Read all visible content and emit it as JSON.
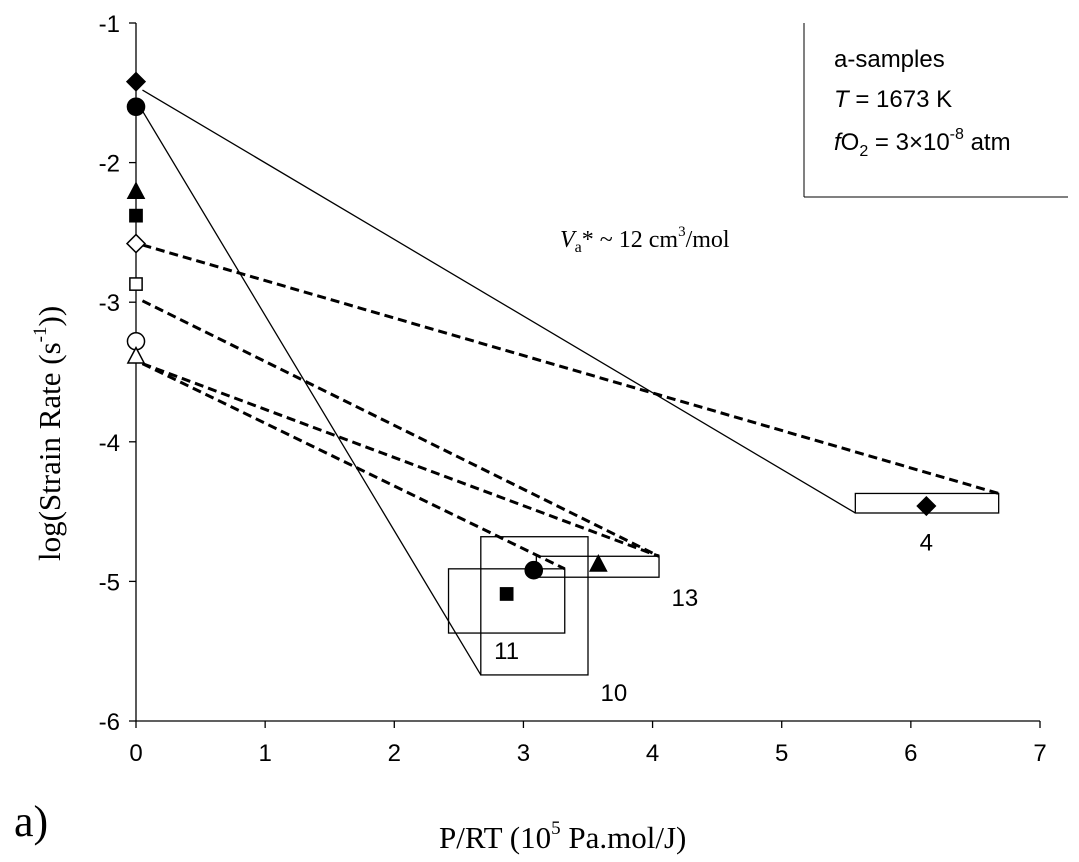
{
  "chart_data": {
    "type": "scatter",
    "panel_label": "a)",
    "xlabel_main": "P/RT (10",
    "xlabel_sup": "5",
    "xlabel_tail": " Pa.mol/J)",
    "ylabel_main": "log(Strain Rate (s",
    "ylabel_sup": "-1",
    "ylabel_tail": "))",
    "xlim": [
      0,
      7
    ],
    "ylim": [
      -6,
      -1
    ],
    "x_ticks": [
      0,
      1,
      2,
      3,
      4,
      5,
      6,
      7
    ],
    "y_ticks": [
      -1,
      -2,
      -3,
      -4,
      -5,
      -6
    ],
    "legend_box": {
      "line1": "a-samples",
      "line2_italic": "T",
      "line2_rest": " = 1673 K",
      "line3_italic": "f",
      "line3_a": "O",
      "line3_sub": "2",
      "line3_b": " = 3×10",
      "line3_sup": "-8",
      "line3_c": " atm"
    },
    "annotation": {
      "v_italic": "V",
      "v_sub": "a",
      "v_mid": "* ~ 12 cm",
      "v_sup": "3",
      "v_tail": "/mol"
    },
    "data_points": [
      {
        "marker": "diamond",
        "filled": true,
        "x": 6.12,
        "y": -4.46
      },
      {
        "marker": "circle",
        "filled": true,
        "x": 3.08,
        "y": -4.92
      },
      {
        "marker": "triangle",
        "filled": true,
        "x": 3.58,
        "y": -4.88
      },
      {
        "marker": "square",
        "filled": true,
        "x": 2.87,
        "y": -5.09
      }
    ],
    "extrapolated_points": [
      {
        "marker": "diamond",
        "filled": true,
        "x": 0,
        "y": -1.42
      },
      {
        "marker": "circle",
        "filled": true,
        "x": 0,
        "y": -1.6
      },
      {
        "marker": "triangle",
        "filled": true,
        "x": 0,
        "y": -2.21
      },
      {
        "marker": "square",
        "filled": true,
        "x": 0,
        "y": -2.38
      },
      {
        "marker": "diamond",
        "filled": false,
        "x": 0,
        "y": -2.58
      },
      {
        "marker": "square",
        "filled": false,
        "x": 0,
        "y": -2.87
      },
      {
        "marker": "circle",
        "filled": false,
        "x": 0,
        "y": -3.28
      },
      {
        "marker": "triangle",
        "filled": false,
        "x": 0,
        "y": -3.39
      }
    ],
    "uncertainty_boxes": [
      {
        "label": "4",
        "x0": 5.57,
        "x1": 6.68,
        "y0": -4.51,
        "y1": -4.37,
        "label_x": 6.12,
        "label_y": -4.72
      },
      {
        "label": "13",
        "x0": 3.1,
        "x1": 4.05,
        "y0": -4.97,
        "y1": -4.82,
        "label_x": 4.25,
        "label_y": -5.12
      },
      {
        "label": "11",
        "x0": 2.42,
        "x1": 3.32,
        "y0": -5.37,
        "y1": -4.91,
        "label_x": 2.87,
        "label_y": -5.5
      },
      {
        "label": "10",
        "x0": 2.67,
        "x1": 3.5,
        "y0": -5.67,
        "y1": -4.68,
        "label_x": 3.7,
        "label_y": -5.8
      }
    ],
    "solid_lines": [
      {
        "x": [
          0.05,
          5.57
        ],
        "y": [
          -1.48,
          -4.51
        ]
      },
      {
        "x": [
          0.05,
          2.67
        ],
        "y": [
          -1.63,
          -5.67
        ]
      }
    ],
    "dashed_lines": [
      {
        "x": [
          0.05,
          6.68
        ],
        "y": [
          -2.59,
          -4.37
        ]
      },
      {
        "x": [
          0.05,
          4.05
        ],
        "y": [
          -2.99,
          -4.82
        ]
      },
      {
        "x": [
          0.05,
          3.32
        ],
        "y": [
          -3.44,
          -4.91
        ]
      },
      {
        "x": [
          0.05,
          4.05
        ],
        "y": [
          -3.44,
          -4.82
        ]
      }
    ]
  }
}
